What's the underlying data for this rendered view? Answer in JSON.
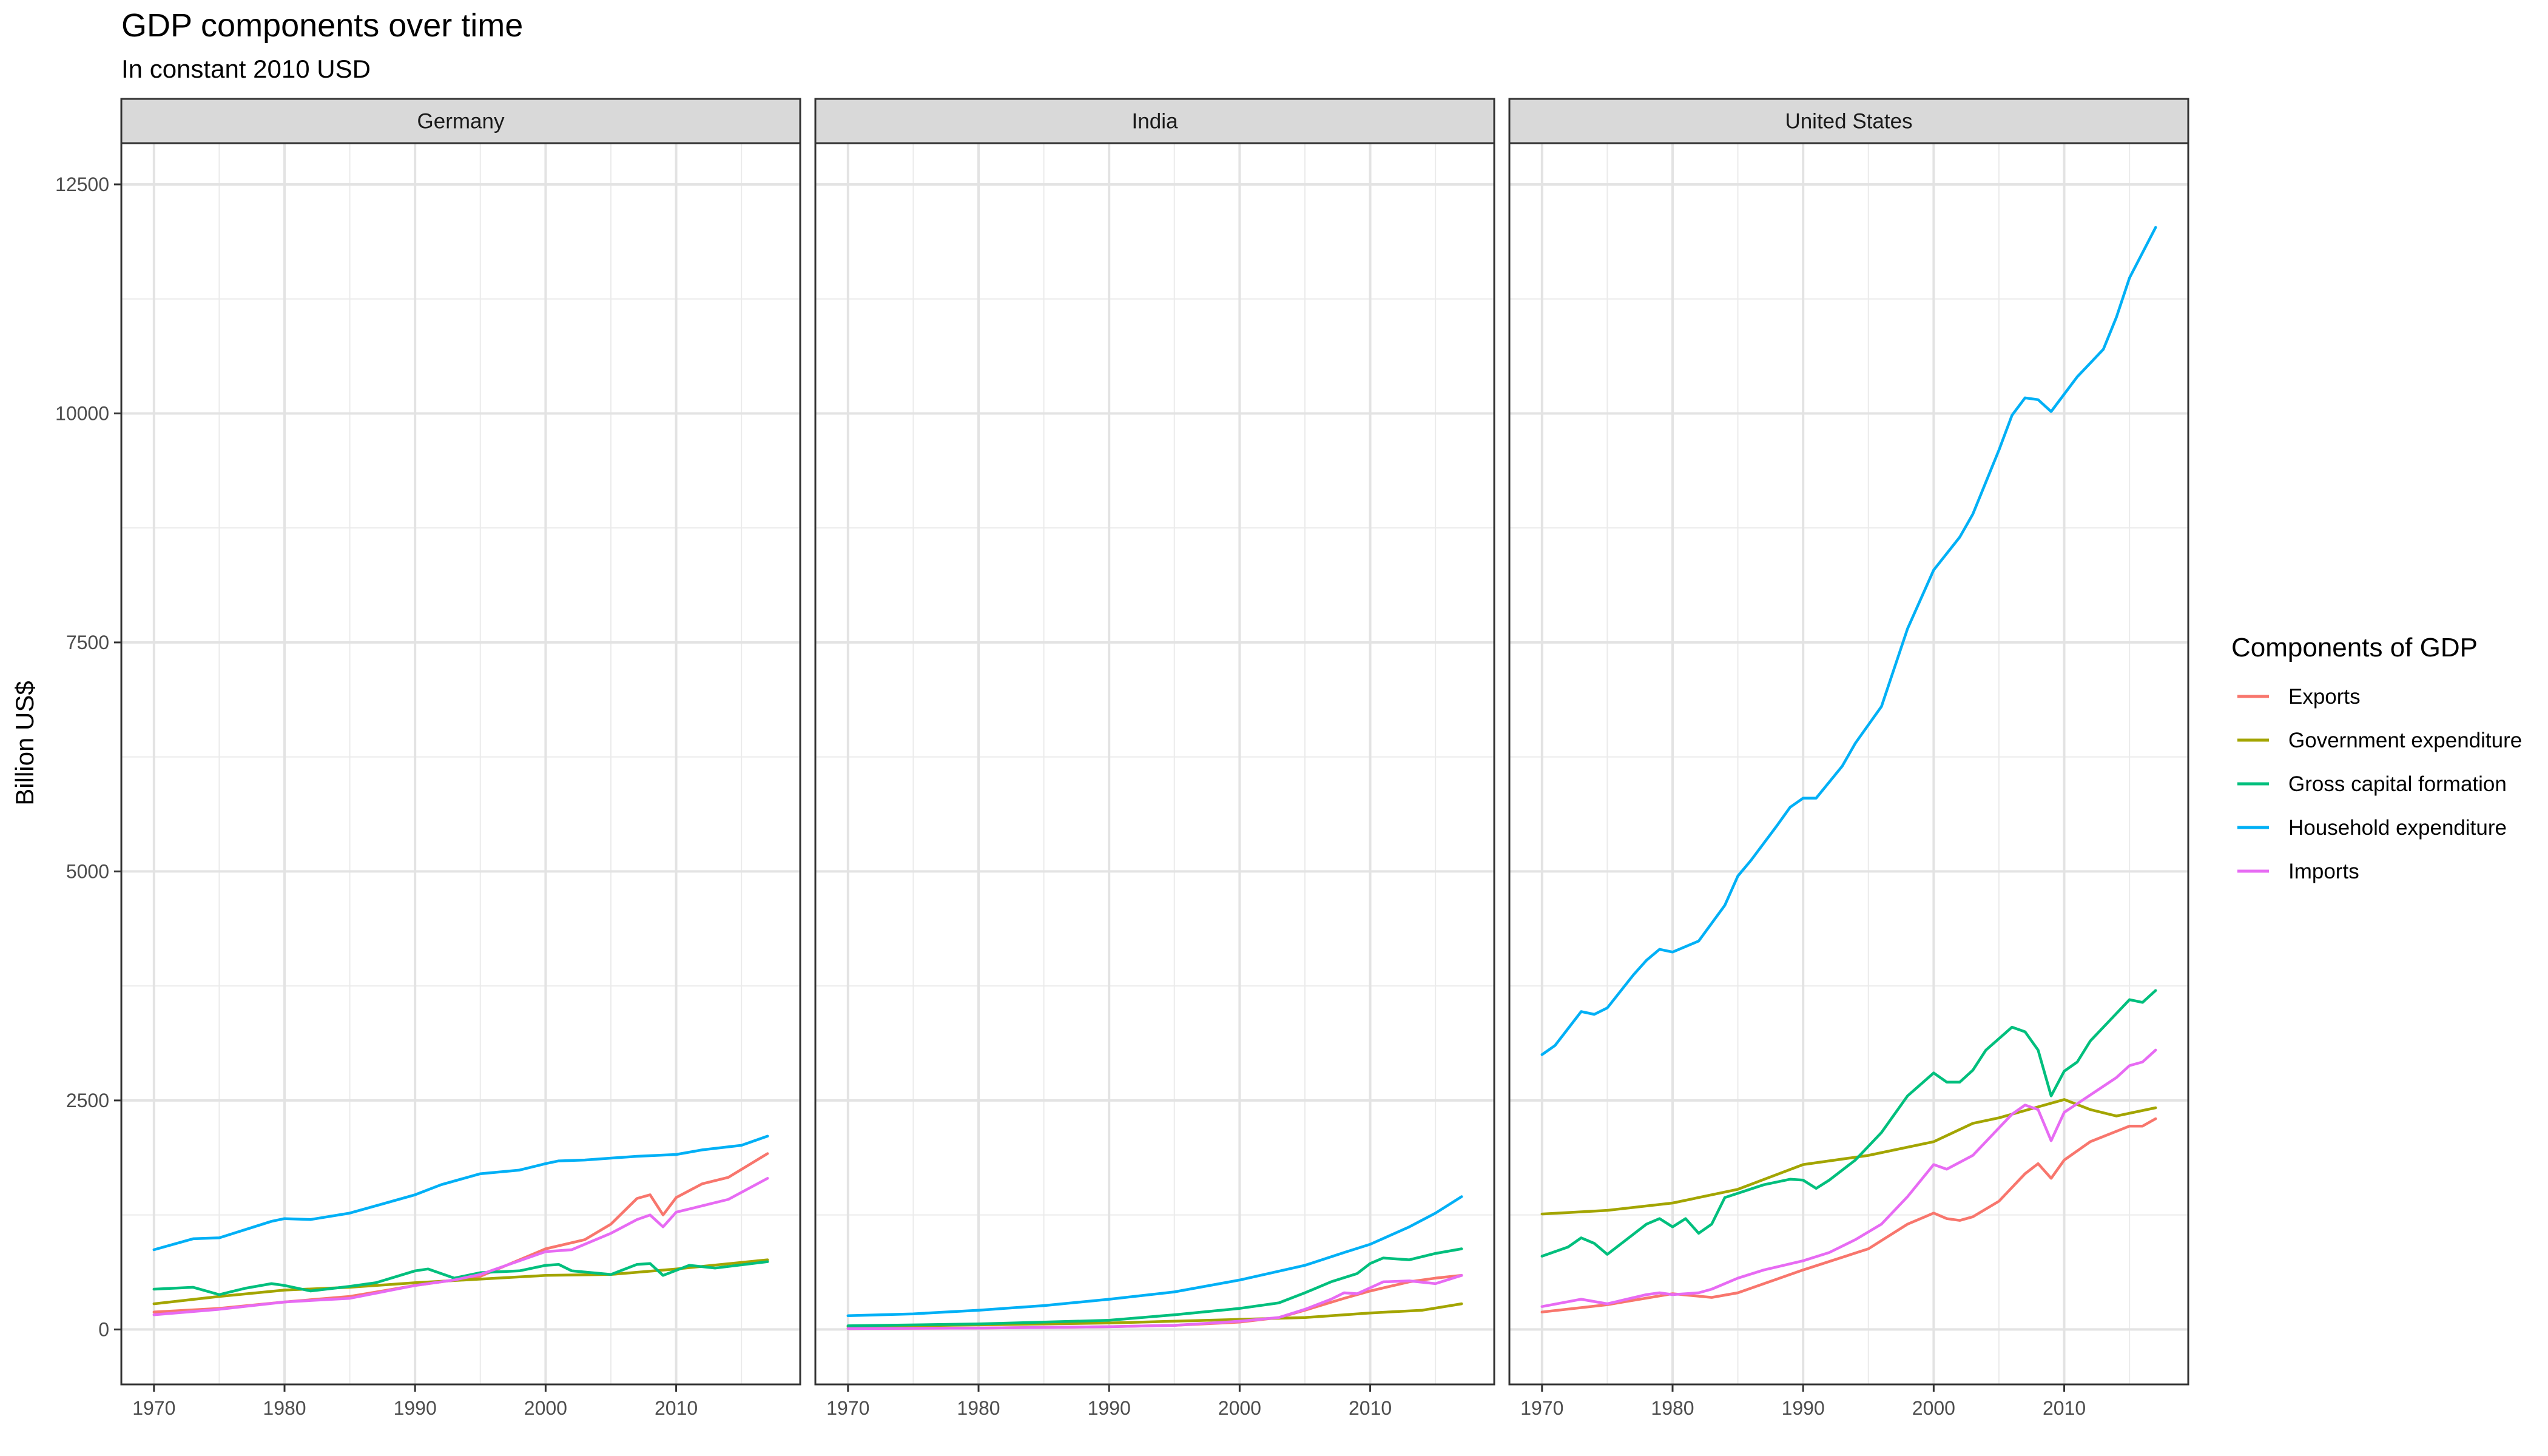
{
  "chart_data": {
    "type": "line",
    "title": "GDP components over time",
    "subtitle": "In constant 2010 USD",
    "ylabel": "Billion US$",
    "xlabel": "",
    "xlim": [
      1967.5,
      2019.5
    ],
    "ylim": [
      -600,
      12950
    ],
    "x_ticks": [
      1970,
      1980,
      1990,
      2000,
      2010
    ],
    "x_tick_labels": [
      "1970",
      "1980",
      "1990",
      "2000",
      "2010"
    ],
    "y_ticks": [
      0,
      2500,
      5000,
      7500,
      10000,
      12500
    ],
    "y_tick_labels": [
      "0",
      "2500",
      "5000",
      "7500",
      "10000",
      "12500"
    ],
    "grid": true,
    "legend": {
      "title": "Components of GDP",
      "placement": "right",
      "entries": [
        {
          "name": "Exports",
          "color": "#F8766D"
        },
        {
          "name": "Government expenditure",
          "color": "#A3A500"
        },
        {
          "name": "Gross capital formation",
          "color": "#00BF7D"
        },
        {
          "name": "Household expenditure",
          "color": "#00B0F6"
        },
        {
          "name": "Imports",
          "color": "#E76BF3"
        }
      ]
    },
    "panels": [
      {
        "label": "Germany",
        "series": [
          {
            "name": "Exports",
            "x": [
              1970,
              1975,
              1980,
              1985,
              1990,
              1995,
              2000,
              2003,
              2005,
              2007,
              2008,
              2009,
              2010,
              2012,
              2014,
              2017
            ],
            "y": [
              190,
              230,
              300,
              360,
              480,
              580,
              880,
              980,
              1150,
              1430,
              1470,
              1250,
              1440,
              1590,
              1660,
              1920
            ]
          },
          {
            "name": "Government expenditure",
            "x": [
              1970,
              1975,
              1980,
              1985,
              1990,
              1995,
              2000,
              2005,
              2010,
              2017
            ],
            "y": [
              280,
              360,
              430,
              460,
              510,
              550,
              590,
              600,
              660,
              760
            ]
          },
          {
            "name": "Gross capital formation",
            "x": [
              1970,
              1973,
              1975,
              1977,
              1979,
              1980,
              1982,
              1985,
              1987,
              1990,
              1991,
              1993,
              1995,
              1998,
              2000,
              2001,
              2002,
              2005,
              2007,
              2008,
              2009,
              2011,
              2013,
              2017
            ],
            "y": [
              440,
              460,
              380,
              450,
              500,
              480,
              420,
              470,
              510,
              640,
              660,
              560,
              620,
              640,
              700,
              710,
              640,
              600,
              710,
              720,
              590,
              700,
              670,
              740
            ]
          },
          {
            "name": "Household expenditure",
            "x": [
              1970,
              1973,
              1975,
              1977,
              1979,
              1980,
              1982,
              1985,
              1987,
              1990,
              1992,
              1995,
              1998,
              2000,
              2001,
              2003,
              2005,
              2007,
              2010,
              2012,
              2015,
              2017
            ],
            "y": [
              870,
              990,
              1000,
              1090,
              1180,
              1210,
              1200,
              1270,
              1350,
              1470,
              1580,
              1700,
              1740,
              1810,
              1840,
              1850,
              1870,
              1890,
              1910,
              1960,
              2010,
              2110
            ]
          },
          {
            "name": "Imports",
            "x": [
              1970,
              1975,
              1980,
              1985,
              1990,
              1993,
              1995,
              2000,
              2002,
              2005,
              2007,
              2008,
              2009,
              2010,
              2012,
              2014,
              2017
            ],
            "y": [
              160,
              220,
              300,
              340,
              480,
              540,
              600,
              850,
              870,
              1050,
              1200,
              1250,
              1120,
              1280,
              1350,
              1420,
              1650
            ]
          }
        ]
      },
      {
        "label": "India",
        "series": [
          {
            "name": "Exports",
            "x": [
              1970,
              1980,
              1990,
              1995,
              2000,
              2003,
              2005,
              2008,
              2010,
              2013,
              2015,
              2017
            ],
            "y": [
              10,
              15,
              30,
              45,
              80,
              130,
              210,
              340,
              420,
              520,
              560,
              590
            ]
          },
          {
            "name": "Government expenditure",
            "x": [
              1970,
              1980,
              1990,
              2000,
              2005,
              2010,
              2014,
              2017
            ],
            "y": [
              30,
              50,
              70,
              110,
              130,
              180,
              210,
              280
            ]
          },
          {
            "name": "Gross capital formation",
            "x": [
              1970,
              1980,
              1990,
              1995,
              2000,
              2003,
              2005,
              2007,
              2009,
              2010,
              2011,
              2013,
              2015,
              2017
            ],
            "y": [
              40,
              60,
              100,
              160,
              230,
              290,
              400,
              520,
              610,
              720,
              780,
              760,
              830,
              880
            ]
          },
          {
            "name": "Household expenditure",
            "x": [
              1970,
              1975,
              1980,
              1985,
              1990,
              1995,
              2000,
              2005,
              2008,
              2010,
              2013,
              2015,
              2017
            ],
            "y": [
              150,
              170,
              210,
              260,
              330,
              410,
              540,
              700,
              840,
              930,
              1120,
              1270,
              1450
            ]
          },
          {
            "name": "Imports",
            "x": [
              1970,
              1980,
              1990,
              1995,
              2000,
              2003,
              2005,
              2007,
              2008,
              2009,
              2011,
              2013,
              2015,
              2017
            ],
            "y": [
              10,
              15,
              30,
              45,
              90,
              130,
              220,
              330,
              400,
              390,
              520,
              530,
              500,
              590
            ]
          }
        ]
      },
      {
        "label": "United States",
        "series": [
          {
            "name": "Exports",
            "x": [
              1970,
              1975,
              1980,
              1983,
              1985,
              1990,
              1995,
              1998,
              2000,
              2001,
              2002,
              2003,
              2005,
              2007,
              2008,
              2009,
              2010,
              2012,
              2015,
              2016,
              2017
            ],
            "y": [
              190,
              270,
              390,
              350,
              400,
              650,
              880,
              1150,
              1270,
              1210,
              1190,
              1230,
              1400,
              1700,
              1810,
              1650,
              1850,
              2050,
              2220,
              2220,
              2300
            ]
          },
          {
            "name": "Government expenditure",
            "x": [
              1970,
              1975,
              1980,
              1985,
              1990,
              1995,
              2000,
              2003,
              2005,
              2008,
              2010,
              2012,
              2014,
              2017
            ],
            "y": [
              1260,
              1300,
              1380,
              1530,
              1800,
              1900,
              2050,
              2250,
              2310,
              2430,
              2510,
              2400,
              2330,
              2420
            ]
          },
          {
            "name": "Gross capital formation",
            "x": [
              1970,
              1972,
              1973,
              1974,
              1975,
              1978,
              1979,
              1980,
              1981,
              1982,
              1983,
              1984,
              1987,
              1989,
              1990,
              1991,
              1992,
              1994,
              1996,
              1998,
              2000,
              2001,
              2002,
              2003,
              2004,
              2006,
              2007,
              2008,
              2009,
              2010,
              2011,
              2012,
              2015,
              2016,
              2017
            ],
            "y": [
              800,
              900,
              1000,
              940,
              820,
              1150,
              1210,
              1120,
              1210,
              1050,
              1150,
              1440,
              1580,
              1640,
              1630,
              1540,
              1630,
              1850,
              2150,
              2550,
              2800,
              2700,
              2700,
              2830,
              3050,
              3300,
              3250,
              3050,
              2550,
              2820,
              2920,
              3150,
              3600,
              3570,
              3700
            ]
          },
          {
            "name": "Household expenditure",
            "x": [
              1970,
              1971,
              1973,
              1974,
              1975,
              1977,
              1978,
              1979,
              1980,
              1982,
              1984,
              1985,
              1986,
              1988,
              1989,
              1990,
              1991,
              1993,
              1994,
              1996,
              1998,
              2000,
              2002,
              2003,
              2005,
              2006,
              2007,
              2008,
              2009,
              2011,
              2012,
              2013,
              2014,
              2015,
              2017
            ],
            "y": [
              3000,
              3100,
              3470,
              3440,
              3510,
              3870,
              4030,
              4150,
              4120,
              4240,
              4630,
              4950,
              5120,
              5500,
              5700,
              5800,
              5800,
              6150,
              6400,
              6800,
              7650,
              8290,
              8650,
              8900,
              9600,
              9980,
              10170,
              10150,
              10020,
              10400,
              10550,
              10700,
              11050,
              11480,
              12030
            ]
          },
          {
            "name": "Imports",
            "x": [
              1970,
              1973,
              1975,
              1978,
              1979,
              1980,
              1982,
              1983,
              1985,
              1987,
              1990,
              1992,
              1994,
              1996,
              1998,
              2000,
              2001,
              2003,
              2005,
              2006,
              2007,
              2008,
              2009,
              2010,
              2012,
              2014,
              2015,
              2016,
              2017
            ],
            "y": [
              250,
              330,
              280,
              380,
              400,
              380,
              400,
              440,
              560,
              650,
              750,
              840,
              980,
              1150,
              1450,
              1800,
              1750,
              1900,
              2200,
              2350,
              2450,
              2400,
              2060,
              2370,
              2560,
              2750,
              2880,
              2920,
              3050
            ]
          }
        ]
      }
    ]
  }
}
